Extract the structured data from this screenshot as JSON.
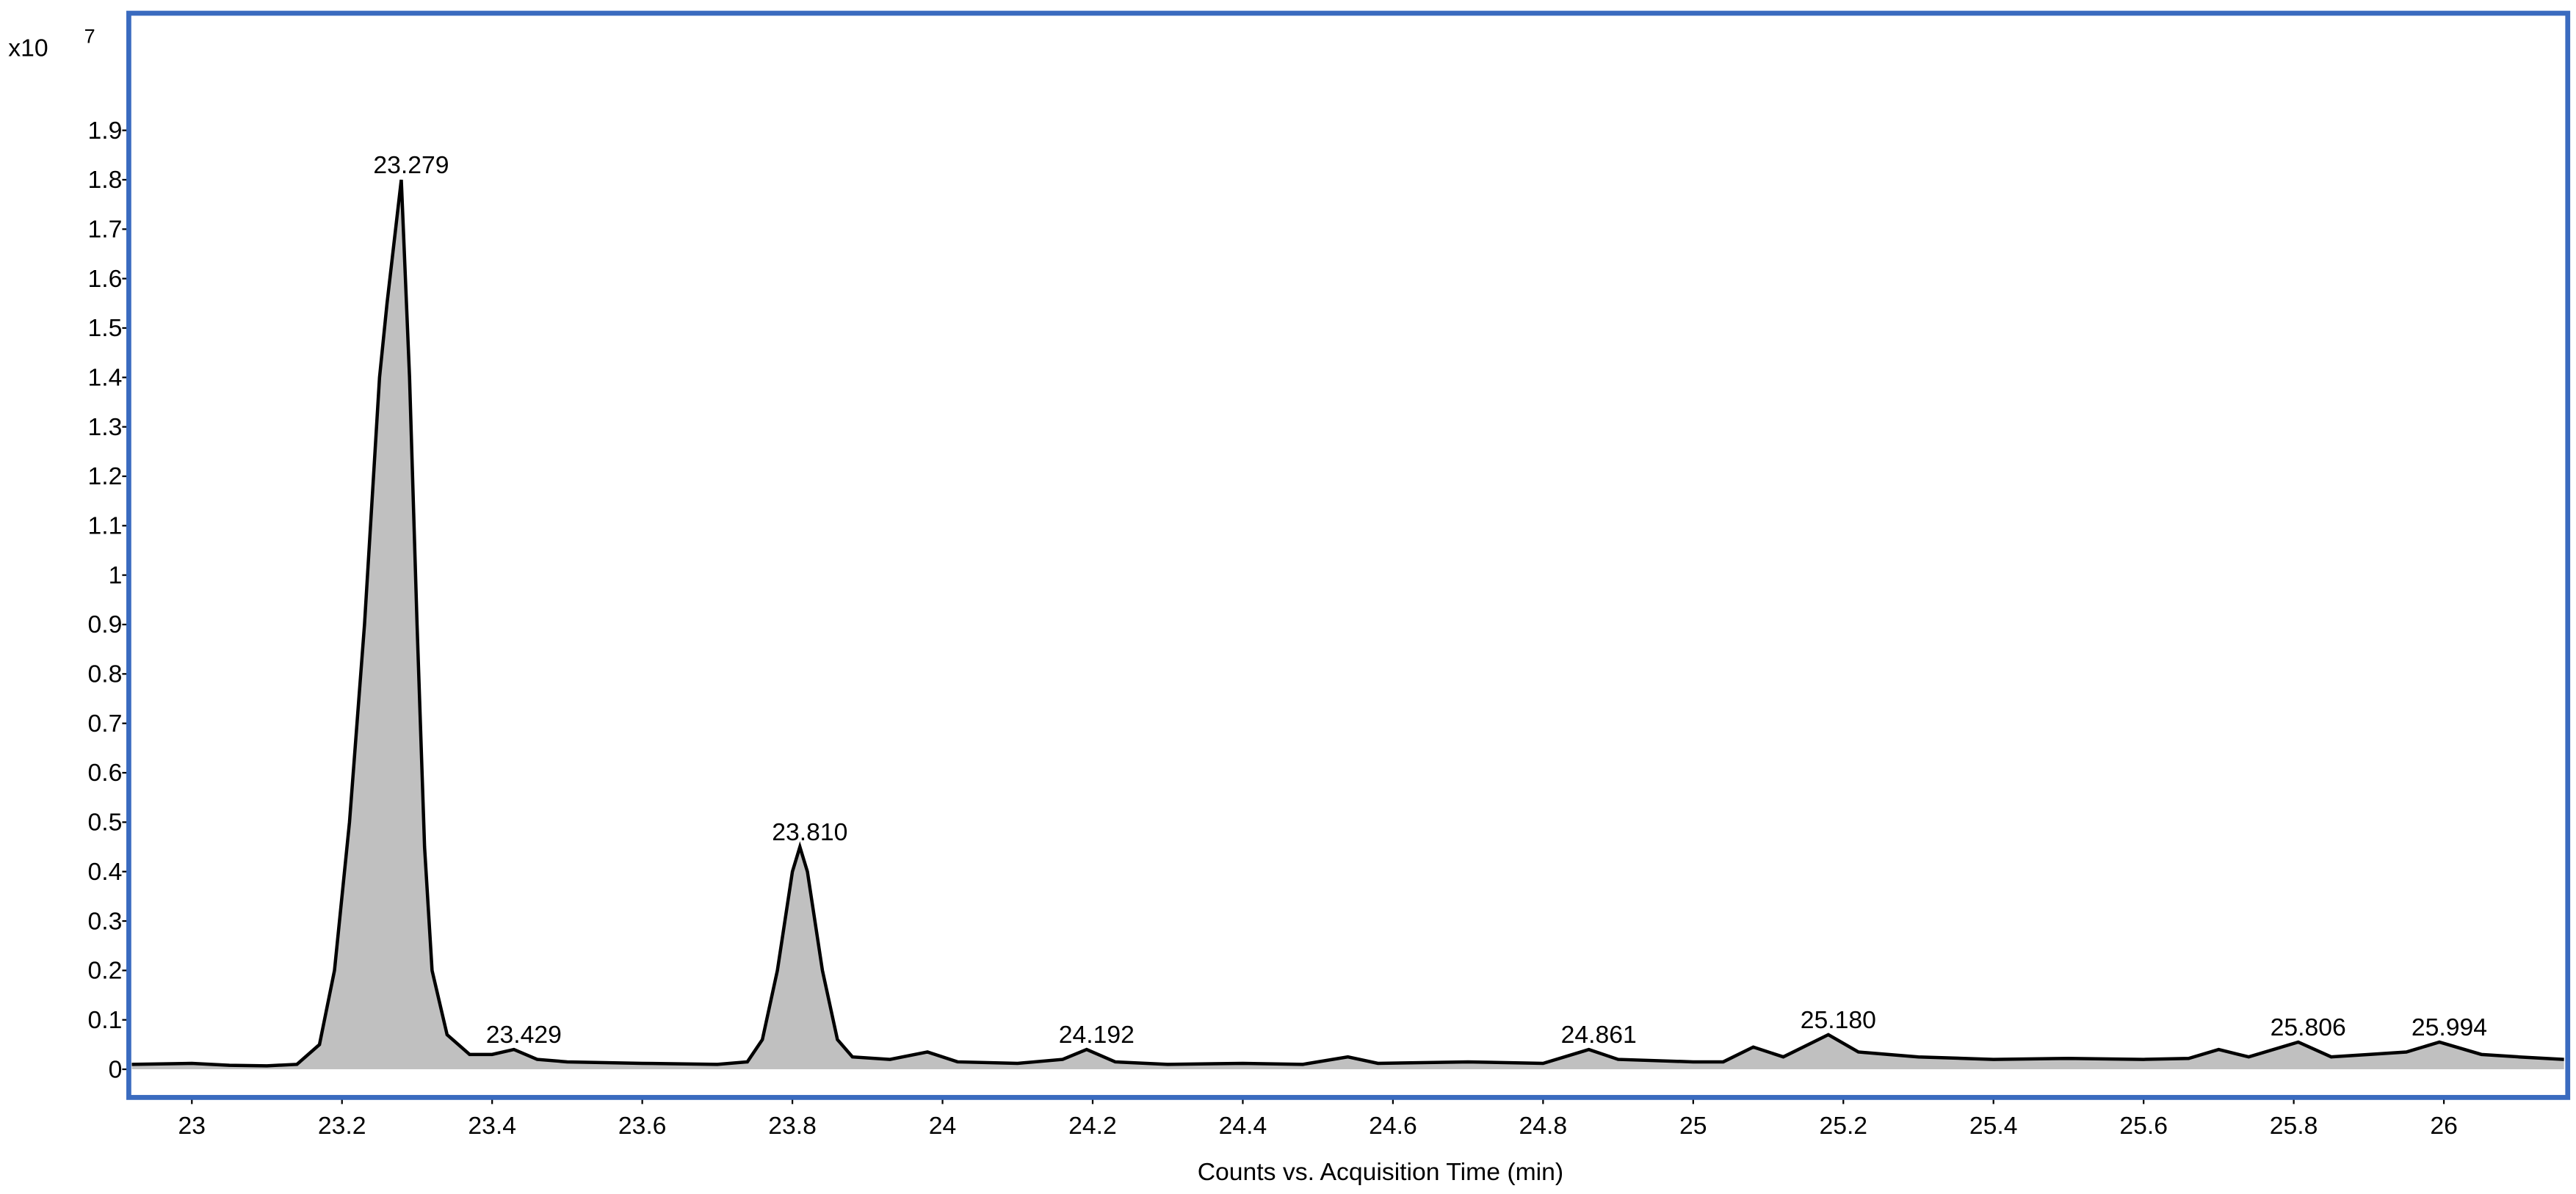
{
  "chart_data": {
    "type": "line",
    "y_multiplier": "x10",
    "y_exponent": "7",
    "xlabel": "Counts vs. Acquisition Time (min)",
    "xlim": [
      22.916,
      26.165
    ],
    "ylim": [
      -0.057,
      2.137
    ],
    "xticks": [
      23,
      23.2,
      23.4,
      23.6,
      23.8,
      24,
      24.2,
      24.4,
      24.6,
      24.8,
      25,
      25.2,
      25.4,
      25.6,
      25.8,
      26
    ],
    "yticks": [
      0,
      0.1,
      0.2,
      0.3,
      0.4,
      0.5,
      0.6,
      0.7,
      0.8,
      0.9,
      1,
      1.1,
      1.2,
      1.3,
      1.4,
      1.5,
      1.6,
      1.7,
      1.8,
      1.9
    ],
    "series": [
      {
        "color": "#000000",
        "fill": "#c0c0c0",
        "x": [
          22.92,
          23.0,
          23.05,
          23.1,
          23.14,
          23.17,
          23.19,
          23.21,
          23.23,
          23.25,
          23.26,
          23.279,
          23.29,
          23.3,
          23.31,
          23.32,
          23.34,
          23.37,
          23.4,
          23.429,
          23.46,
          23.5,
          23.6,
          23.7,
          23.74,
          23.76,
          23.78,
          23.8,
          23.81,
          23.82,
          23.84,
          23.86,
          23.88,
          23.93,
          23.98,
          24.02,
          24.1,
          24.16,
          24.192,
          24.23,
          24.3,
          24.4,
          24.48,
          24.54,
          24.58,
          24.7,
          24.8,
          24.861,
          24.9,
          25.0,
          25.04,
          25.08,
          25.12,
          25.18,
          25.22,
          25.26,
          25.3,
          25.4,
          25.5,
          25.6,
          25.66,
          25.7,
          25.74,
          25.806,
          25.85,
          25.9,
          25.95,
          25.994,
          26.05,
          26.1,
          26.16
        ],
        "values": [
          0.01,
          0.012,
          0.008,
          0.007,
          0.01,
          0.05,
          0.2,
          0.5,
          0.9,
          1.4,
          1.55,
          1.8,
          1.4,
          0.9,
          0.45,
          0.2,
          0.07,
          0.03,
          0.03,
          0.04,
          0.02,
          0.015,
          0.012,
          0.01,
          0.015,
          0.06,
          0.2,
          0.4,
          0.45,
          0.4,
          0.2,
          0.06,
          0.025,
          0.02,
          0.035,
          0.015,
          0.012,
          0.02,
          0.04,
          0.015,
          0.01,
          0.012,
          0.01,
          0.025,
          0.012,
          0.015,
          0.012,
          0.04,
          0.02,
          0.015,
          0.015,
          0.045,
          0.025,
          0.07,
          0.035,
          0.03,
          0.025,
          0.02,
          0.022,
          0.02,
          0.022,
          0.04,
          0.025,
          0.055,
          0.025,
          0.03,
          0.035,
          0.055,
          0.03,
          0.025,
          0.02
        ]
      }
    ],
    "annotations": [
      {
        "value": 23.279,
        "label": "23.279"
      },
      {
        "value": 23.429,
        "label": "23.429"
      },
      {
        "value": 23.81,
        "label": "23.810"
      },
      {
        "value": 24.192,
        "label": "24.192"
      },
      {
        "value": 24.861,
        "label": "24.861"
      },
      {
        "value": 25.18,
        "label": "25.180"
      },
      {
        "value": 25.806,
        "label": "25.806"
      },
      {
        "value": 25.994,
        "label": "25.994"
      }
    ]
  }
}
